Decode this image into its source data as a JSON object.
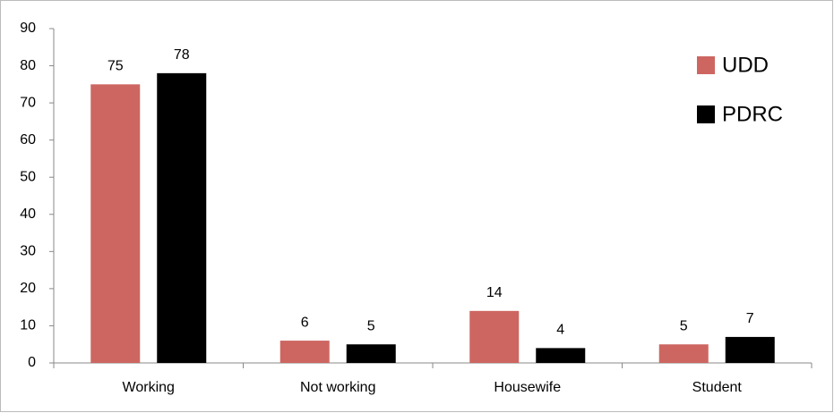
{
  "chart_data": {
    "type": "bar",
    "categories": [
      "Working",
      "Not working",
      "Housewife",
      "Student"
    ],
    "series": [
      {
        "name": "UDD",
        "color": "#cd6661",
        "values": [
          75,
          6,
          14,
          5
        ]
      },
      {
        "name": "PDRC",
        "color": "#000000",
        "values": [
          78,
          5,
          4,
          7
        ]
      }
    ],
    "ylim": [
      0,
      90
    ],
    "yticks": [
      0,
      10,
      20,
      30,
      40,
      50,
      60,
      70,
      80,
      90
    ],
    "legend": "top-right",
    "data_labels": true
  }
}
